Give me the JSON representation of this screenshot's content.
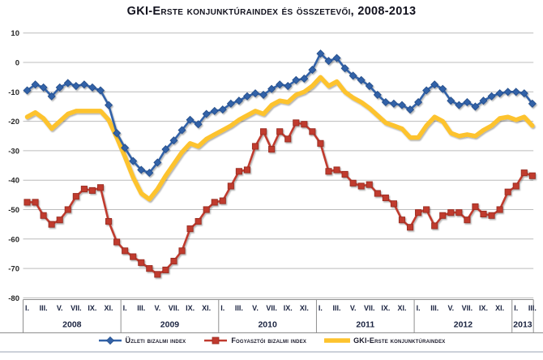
{
  "chart_data": {
    "type": "line",
    "title": "GKI-Erste konjunktúraindex és összetevői, 2008-2013",
    "frequency": "monthly",
    "start": "2008-I",
    "end": "2013-III",
    "grid": true,
    "legend_position": "bottom",
    "y_axis": {
      "min": -80,
      "max": 10,
      "step": 10,
      "ticks": [
        "10",
        "0",
        "-10",
        "-20",
        "-30",
        "-40",
        "-50",
        "-60",
        "-70",
        "-80"
      ]
    },
    "x_axis": {
      "years": [
        {
          "label": "2008",
          "ticks": [
            "I.",
            "III.",
            "V.",
            "VII.",
            "IX.",
            "XI."
          ],
          "tick_months": [
            0,
            2,
            4,
            6,
            8,
            10
          ]
        },
        {
          "label": "2009",
          "ticks": [
            "I.",
            "III.",
            "V.",
            "VII.",
            "IX.",
            "XI."
          ],
          "tick_months": [
            0,
            2,
            4,
            6,
            8,
            10
          ]
        },
        {
          "label": "2010",
          "ticks": [
            "I.",
            "III.",
            "V.",
            "VII.",
            "IX.",
            "XI."
          ],
          "tick_months": [
            0,
            2,
            4,
            6,
            8,
            10
          ]
        },
        {
          "label": "2011",
          "ticks": [
            "I.",
            "III.",
            "V.",
            "VII.",
            "IX.",
            "XI."
          ],
          "tick_months": [
            0,
            2,
            4,
            6,
            8,
            10
          ]
        },
        {
          "label": "2012",
          "ticks": [
            "I.",
            "III.",
            "V.",
            "VII.",
            "IX.",
            "XI."
          ],
          "tick_months": [
            0,
            2,
            4,
            6,
            8,
            10
          ]
        },
        {
          "label": "2013",
          "ticks": [
            "I.",
            "III."
          ],
          "tick_months": [
            0,
            2
          ]
        }
      ]
    },
    "series": [
      {
        "name": "Üzleti bizalmi index",
        "marker": "diamond",
        "color": "#3262A8",
        "stroke_dark": "#27508C",
        "line_width": 2.6,
        "values": [
          -9.5,
          -7.5,
          -8.5,
          -11.5,
          -8.5,
          -7,
          -8,
          -7.5,
          -8.5,
          -9.5,
          -14.5,
          -24,
          -29,
          -33.5,
          -36.5,
          -37.5,
          -34,
          -29.5,
          -26.5,
          -23,
          -19.5,
          -21,
          -17.5,
          -16.5,
          -16,
          -14,
          -13,
          -11.5,
          -10.5,
          -11,
          -9,
          -7.5,
          -8,
          -6,
          -5.5,
          -2.5,
          3,
          0.5,
          1.5,
          -2,
          -4.5,
          -6,
          -8,
          -11,
          -13.5,
          -14,
          -14.5,
          -16,
          -13.5,
          -9.5,
          -7.5,
          -9,
          -13,
          -14.5,
          -13.5,
          -15,
          -13,
          -11.5,
          -10.5,
          -10,
          -10,
          -10.5,
          -14
        ]
      },
      {
        "name": "Fogyasztói bizalmi index",
        "marker": "square",
        "color": "#C03A2E",
        "stroke_dark": "#992E24",
        "line_width": 2.6,
        "values": [
          -47.5,
          -47.5,
          -52,
          -55,
          -53.5,
          -50,
          -45.5,
          -43,
          -43.5,
          -42.5,
          -54,
          -61,
          -64,
          -66,
          -68,
          -70,
          -72,
          -70.5,
          -67.5,
          -64,
          -56.5,
          -54,
          -50,
          -47.5,
          -47,
          -42,
          -37,
          -36.5,
          -28.5,
          -23.5,
          -29.5,
          -23.5,
          -26,
          -20.5,
          -21,
          -23.5,
          -27.5,
          -37,
          -36.5,
          -38,
          -41,
          -42,
          -41.5,
          -44.5,
          -46,
          -48,
          -53.5,
          -56,
          -51,
          -50,
          -55.5,
          -52,
          -51,
          -51,
          -53.5,
          -49,
          -51.5,
          -52,
          -50,
          -44,
          -42,
          -37.5,
          -38.5
        ]
      },
      {
        "name": "GKI-Erste konjunktúraindex",
        "marker": "none",
        "color": "#FDC32D",
        "stroke_dark": "#FDC32D",
        "line_width": 5.5,
        "values": [
          -18.5,
          -17,
          -19,
          -22.5,
          -20,
          -17.5,
          -16.5,
          -16.5,
          -16.5,
          -16.5,
          -19.5,
          -25.5,
          -32,
          -39,
          -44.5,
          -46.5,
          -43,
          -38.5,
          -34.5,
          -30.5,
          -27.5,
          -28.5,
          -26,
          -24.5,
          -23,
          -21.5,
          -19.5,
          -18,
          -16.5,
          -17.5,
          -14.5,
          -13,
          -13.5,
          -11,
          -10,
          -8,
          -5,
          -8,
          -6.5,
          -10,
          -12,
          -13.5,
          -15.5,
          -18,
          -20.5,
          -21.5,
          -22.5,
          -25.5,
          -25.5,
          -21.5,
          -18.5,
          -20,
          -24,
          -25,
          -24.5,
          -25,
          -23,
          -21.5,
          -19,
          -18.5,
          -19.5,
          -18.5,
          -21.5
        ]
      }
    ],
    "style": {
      "gridline_color": "#bcbcbc",
      "axis_band_border_color": "#8f8f8f",
      "tick_label_color": "#262626",
      "month_label_color": "#1a2340",
      "year_label_color": "#1a2340"
    }
  }
}
